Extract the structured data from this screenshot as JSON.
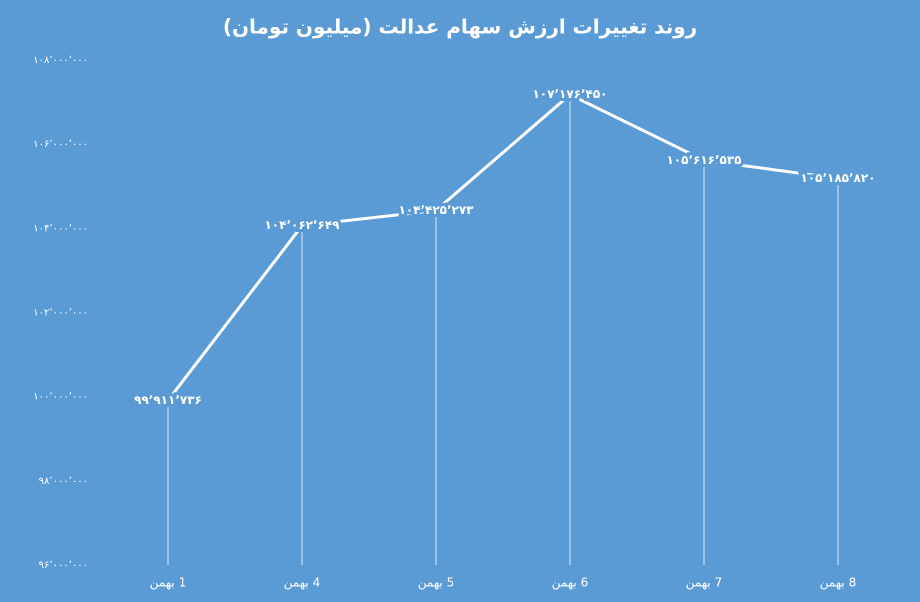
{
  "chart_data": {
    "type": "line",
    "title": "روند تغییرات ارزش سهام عدالت (میلیون تومان)",
    "categories": [
      "1 بهمن",
      "4 بهمن",
      "5 بهمن",
      "6 بهمن",
      "7 بهمن",
      "8 بهمن"
    ],
    "series": [
      {
        "color": "#ffffff",
        "values": [
          99911736,
          104062649,
          104425273,
          107176450,
          105616535,
          105185820
        ],
        "value_labels": [
          "۹۹٬۹۱۱٬۷۳۶",
          "۱۰۴٬۰۶۲٬۶۴۹",
          "۱۰۴٬۴۲۵٬۲۷۳",
          "۱۰۷٬۱۷۶٬۴۵۰",
          "۱۰۵٬۶۱۶٬۵۳۵",
          "۱۰۵٬۱۸۵٬۸۲۰"
        ]
      }
    ],
    "ylim": [
      96000000,
      108000000
    ],
    "yticks": [
      {
        "value": 96000000,
        "label": "۹۶٬۰۰۰٬۰۰۰"
      },
      {
        "value": 98000000,
        "label": "۹۸٬۰۰۰٬۰۰۰"
      },
      {
        "value": 100000000,
        "label": "۱۰۰٬۰۰۰٬۰۰۰"
      },
      {
        "value": 102000000,
        "label": "۱۰۲٬۰۰۰٬۰۰۰"
      },
      {
        "value": 104000000,
        "label": "۱۰۴٬۰۰۰٬۰۰۰"
      },
      {
        "value": 106000000,
        "label": "۱۰۶٬۰۰۰٬۰۰۰"
      },
      {
        "value": 108000000,
        "label": "۱۰۸٬۰۰۰٬۰۰۰"
      }
    ],
    "drop_lines": true
  }
}
